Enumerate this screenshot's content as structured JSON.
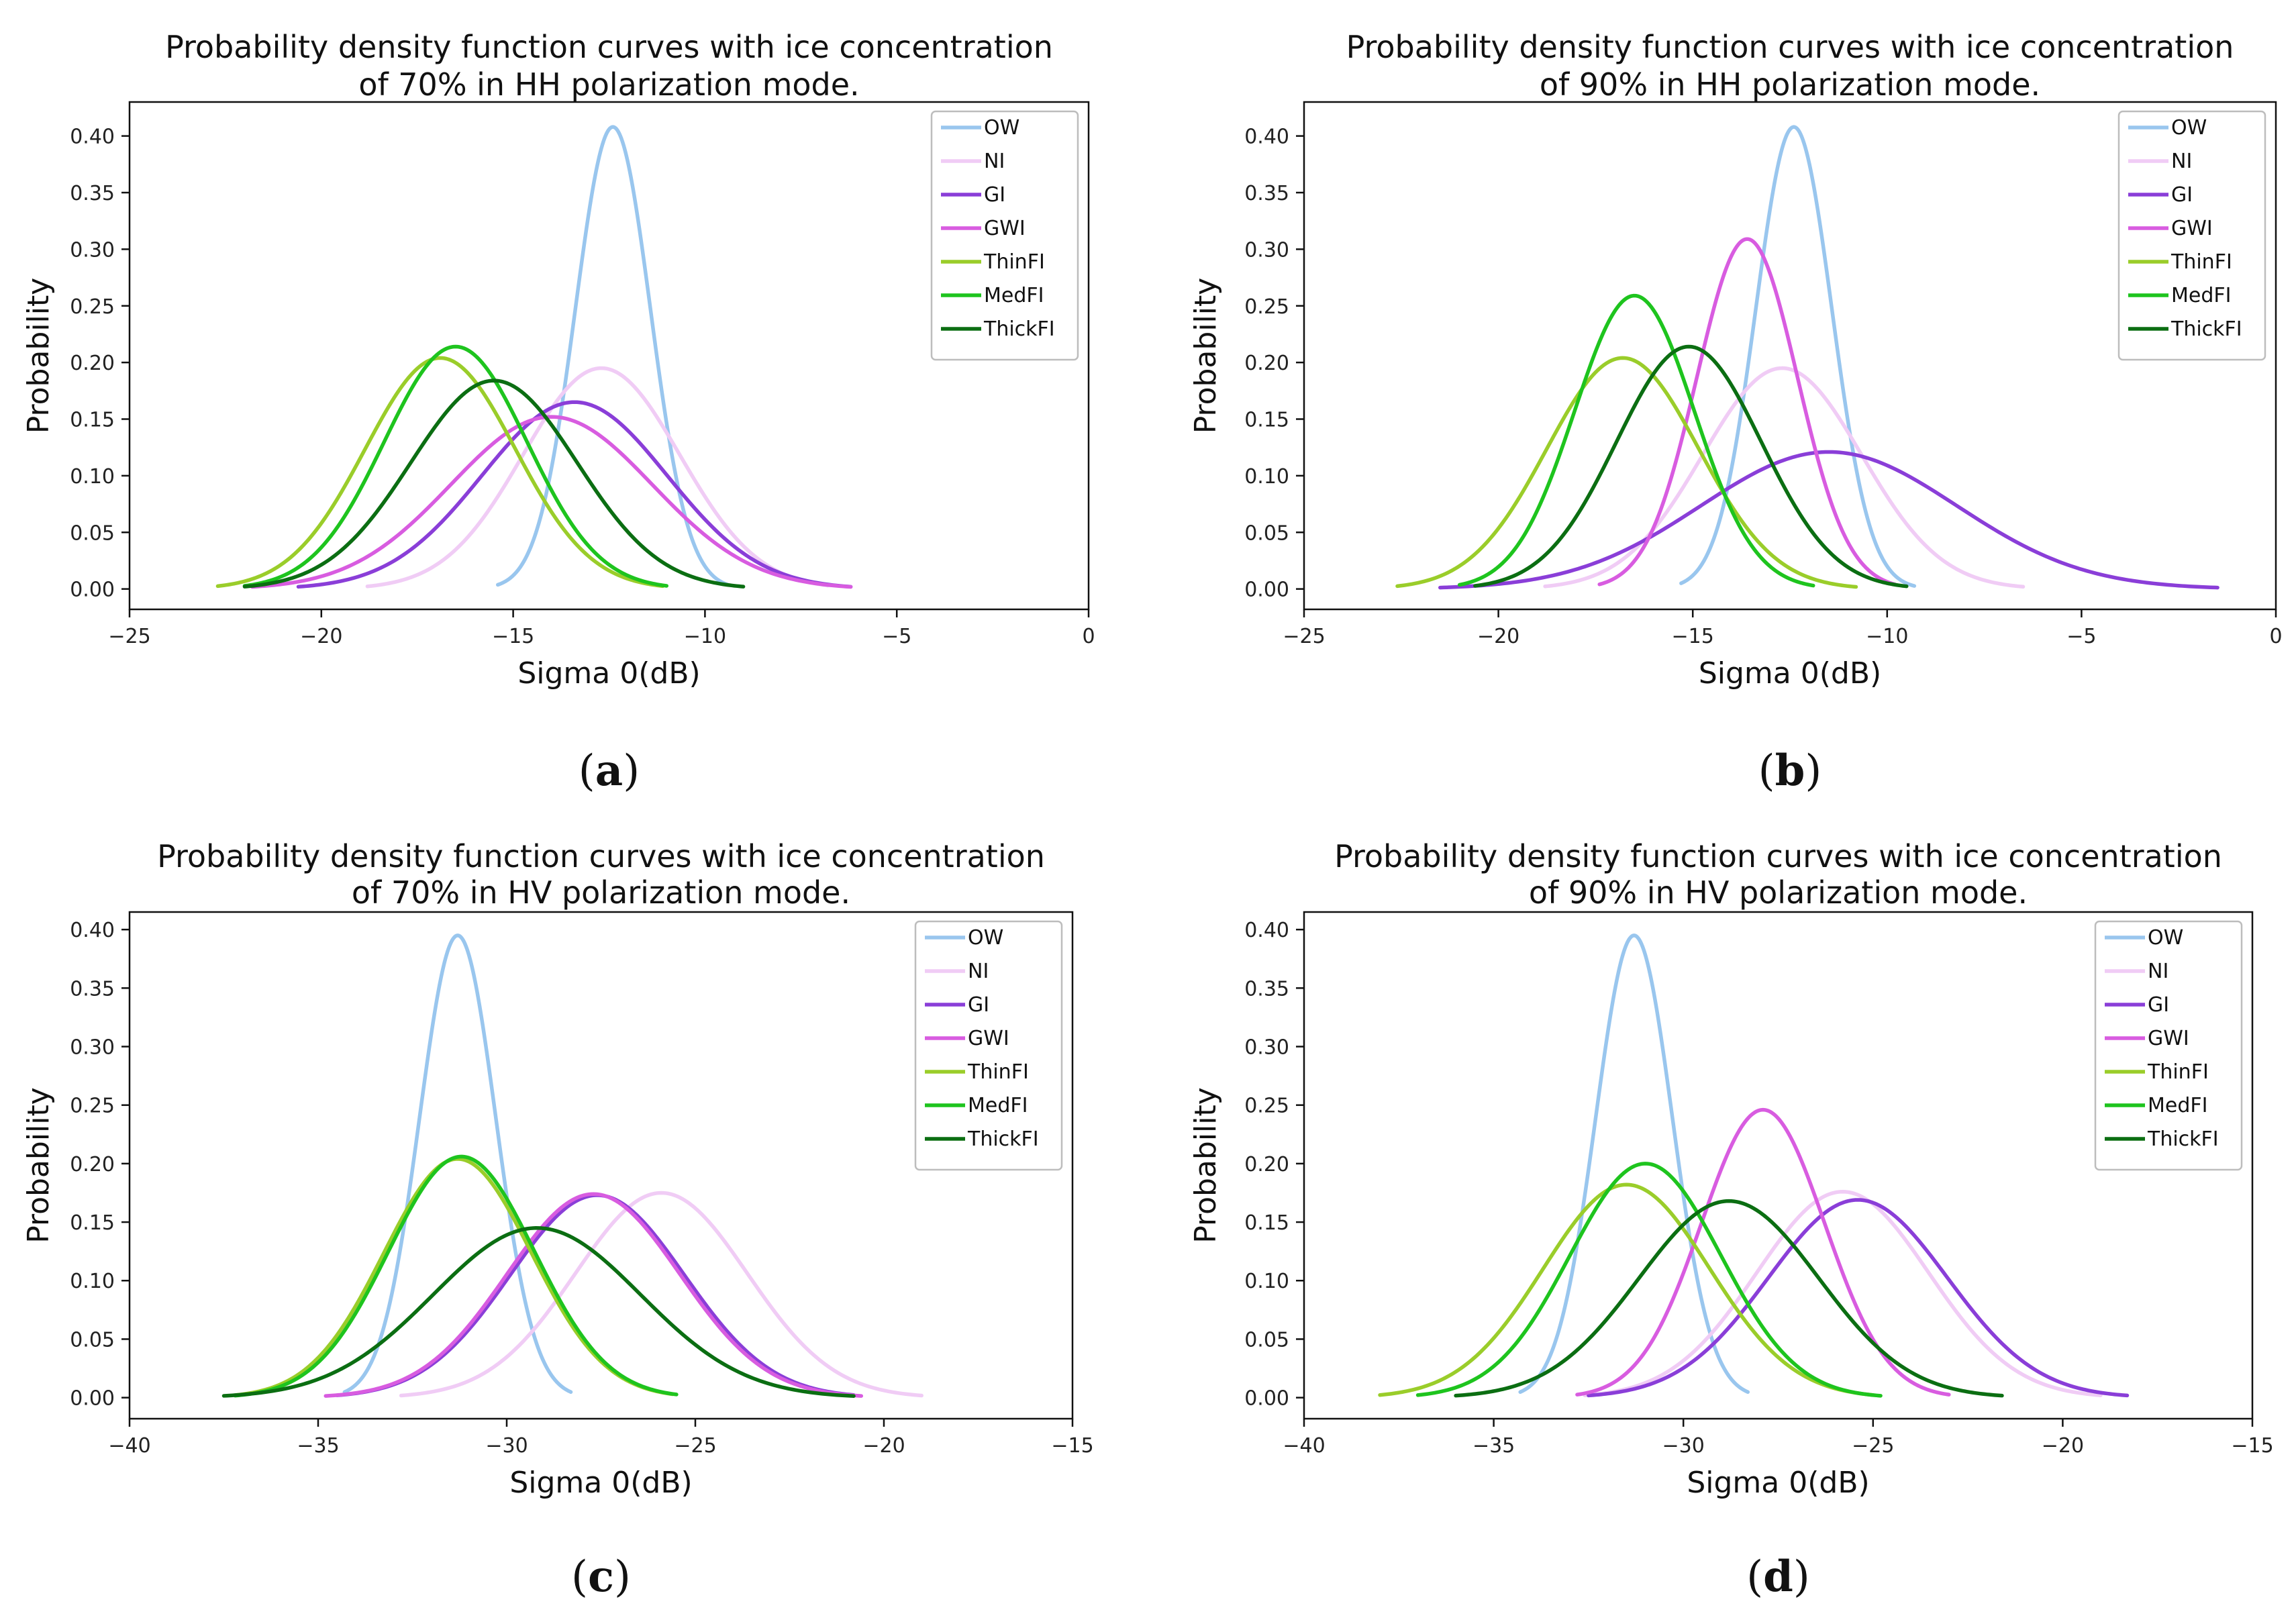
{
  "chart_data": [
    {
      "type": "line",
      "panel_label": "a",
      "title": "Probability density function curves with ice concentration of 70% in HH polarization mode.",
      "title_lines": [
        "Probability density function curves with ice concentration",
        "of 70% in HH polarization mode."
      ],
      "xlabel": "Sigma 0(dB)",
      "ylabel": "Probability",
      "xlim": [
        -25,
        0
      ],
      "ylim": [
        -0.018,
        0.43
      ],
      "xticks": [
        -25,
        -20,
        -15,
        -10,
        -5,
        0
      ],
      "yticks": [
        0.0,
        0.05,
        0.1,
        0.15,
        0.2,
        0.25,
        0.3,
        0.35,
        0.4
      ],
      "ytick_labels": [
        "0.00",
        "0.05",
        "0.10",
        "0.15",
        "0.20",
        "0.25",
        "0.30",
        "0.35",
        "0.40"
      ],
      "legend": "top-right",
      "grid": false,
      "series": [
        {
          "name": "OW",
          "color": "#99c6ee",
          "mean": -12.4,
          "peak": 0.408,
          "xrange": [
            -15.4,
            -9.4
          ]
        },
        {
          "name": "NI",
          "color": "#f0ccf5",
          "mean": -12.7,
          "peak": 0.195,
          "xrange": [
            -18.8,
            -6.8
          ]
        },
        {
          "name": "GI",
          "color": "#8a3ed8",
          "mean": -13.4,
          "peak": 0.165,
          "xrange": [
            -20.6,
            -6.2
          ]
        },
        {
          "name": "GWI",
          "color": "#d85ce0",
          "mean": -14.0,
          "peak": 0.152,
          "xrange": [
            -21.8,
            -6.2
          ]
        },
        {
          "name": "ThinFI",
          "color": "#9acd2a",
          "mean": -16.9,
          "peak": 0.204,
          "xrange": [
            -22.7,
            -11.1
          ]
        },
        {
          "name": "MedFI",
          "color": "#1ec41e",
          "mean": -16.5,
          "peak": 0.214,
          "xrange": [
            -22.0,
            -11.0
          ]
        },
        {
          "name": "ThickFI",
          "color": "#0b6e12",
          "mean": -15.5,
          "peak": 0.184,
          "xrange": [
            -22.0,
            -9.0
          ]
        }
      ]
    },
    {
      "type": "line",
      "panel_label": "b",
      "title": "Probability density function curves with ice concentration of 90% in HH polarization mode.",
      "title_lines": [
        "Probability density function curves with ice concentration",
        "of 90% in HH polarization mode."
      ],
      "xlabel": "Sigma 0(dB)",
      "ylabel": "Probability",
      "xlim": [
        -25,
        0
      ],
      "ylim": [
        -0.018,
        0.43
      ],
      "xticks": [
        -25,
        -20,
        -15,
        -10,
        -5,
        0
      ],
      "yticks": [
        0.0,
        0.05,
        0.1,
        0.15,
        0.2,
        0.25,
        0.3,
        0.35,
        0.4
      ],
      "ytick_labels": [
        "0.00",
        "0.05",
        "0.10",
        "0.15",
        "0.20",
        "0.25",
        "0.30",
        "0.35",
        "0.40"
      ],
      "legend": "top-right",
      "grid": false,
      "series": [
        {
          "name": "OW",
          "color": "#99c6ee",
          "mean": -12.4,
          "peak": 0.408,
          "xrange": [
            -15.3,
            -9.3
          ]
        },
        {
          "name": "NI",
          "color": "#f0ccf5",
          "mean": -12.7,
          "peak": 0.195,
          "xrange": [
            -18.8,
            -6.5
          ]
        },
        {
          "name": "GI",
          "color": "#8a3ed8",
          "mean": -11.5,
          "peak": 0.121,
          "xrange": [
            -21.5,
            -1.5
          ]
        },
        {
          "name": "GWI",
          "color": "#d85ce0",
          "mean": -13.6,
          "peak": 0.309,
          "xrange": [
            -17.4,
            -9.8
          ]
        },
        {
          "name": "ThinFI",
          "color": "#9acd2a",
          "mean": -16.8,
          "peak": 0.204,
          "xrange": [
            -22.6,
            -10.8
          ]
        },
        {
          "name": "MedFI",
          "color": "#1ec41e",
          "mean": -16.5,
          "peak": 0.259,
          "xrange": [
            -21.0,
            -11.9
          ]
        },
        {
          "name": "ThickFI",
          "color": "#0b6e12",
          "mean": -15.1,
          "peak": 0.214,
          "xrange": [
            -20.6,
            -9.5
          ]
        }
      ]
    },
    {
      "type": "line",
      "panel_label": "c",
      "title": "Probability density function curves with ice concentration of 70% in HV polarization mode.",
      "title_lines": [
        "Probability density function curves with ice concentration",
        "of 70% in HV polarization mode."
      ],
      "xlabel": "Sigma 0(dB)",
      "ylabel": "Probability",
      "xlim": [
        -40,
        -15
      ],
      "ylim": [
        -0.018,
        0.415
      ],
      "xticks": [
        -40,
        -35,
        -30,
        -25,
        -20,
        -15
      ],
      "yticks": [
        0.0,
        0.05,
        0.1,
        0.15,
        0.2,
        0.25,
        0.3,
        0.35,
        0.4
      ],
      "ytick_labels": [
        "0.00",
        "0.05",
        "0.10",
        "0.15",
        "0.20",
        "0.25",
        "0.30",
        "0.35",
        "0.40"
      ],
      "legend": "top-right",
      "grid": false,
      "series": [
        {
          "name": "OW",
          "color": "#99c6ee",
          "mean": -31.3,
          "peak": 0.395,
          "xrange": [
            -34.3,
            -28.3
          ]
        },
        {
          "name": "NI",
          "color": "#f0ccf5",
          "mean": -25.9,
          "peak": 0.175,
          "xrange": [
            -32.8,
            -19.0
          ]
        },
        {
          "name": "GI",
          "color": "#8a3ed8",
          "mean": -27.6,
          "peak": 0.173,
          "xrange": [
            -34.5,
            -20.8
          ]
        },
        {
          "name": "GWI",
          "color": "#d85ce0",
          "mean": -27.7,
          "peak": 0.174,
          "xrange": [
            -34.8,
            -20.6
          ]
        },
        {
          "name": "ThinFI",
          "color": "#9acd2a",
          "mean": -31.3,
          "peak": 0.204,
          "xrange": [
            -37.2,
            -25.6
          ]
        },
        {
          "name": "MedFI",
          "color": "#1ec41e",
          "mean": -31.2,
          "peak": 0.206,
          "xrange": [
            -37.2,
            -25.5
          ]
        },
        {
          "name": "ThickFI",
          "color": "#0b6e12",
          "mean": -29.2,
          "peak": 0.145,
          "xrange": [
            -37.5,
            -20.8
          ]
        }
      ]
    },
    {
      "type": "line",
      "panel_label": "d",
      "title": "Probability density function curves with ice concentration of 90% in HV polarization mode.",
      "title_lines": [
        "Probability density function curves with ice concentration",
        "of 90% in HV polarization mode."
      ],
      "xlabel": "Sigma 0(dB)",
      "ylabel": "Probability",
      "xlim": [
        -40,
        -15
      ],
      "ylim": [
        -0.018,
        0.415
      ],
      "xticks": [
        -40,
        -35,
        -30,
        -25,
        -20,
        -15
      ],
      "yticks": [
        0.0,
        0.05,
        0.1,
        0.15,
        0.2,
        0.25,
        0.3,
        0.35,
        0.4
      ],
      "ytick_labels": [
        "0.00",
        "0.05",
        "0.10",
        "0.15",
        "0.20",
        "0.25",
        "0.30",
        "0.35",
        "0.40"
      ],
      "legend": "top-right",
      "grid": false,
      "series": [
        {
          "name": "OW",
          "color": "#99c6ee",
          "mean": -31.3,
          "peak": 0.395,
          "xrange": [
            -34.3,
            -28.3
          ]
        },
        {
          "name": "NI",
          "color": "#f0ccf5",
          "mean": -25.8,
          "peak": 0.176,
          "xrange": [
            -32.6,
            -19.0
          ]
        },
        {
          "name": "GI",
          "color": "#8a3ed8",
          "mean": -25.4,
          "peak": 0.169,
          "xrange": [
            -32.5,
            -18.3
          ]
        },
        {
          "name": "GWI",
          "color": "#d85ce0",
          "mean": -27.9,
          "peak": 0.246,
          "xrange": [
            -32.8,
            -23.0
          ]
        },
        {
          "name": "ThinFI",
          "color": "#9acd2a",
          "mean": -31.5,
          "peak": 0.182,
          "xrange": [
            -38.0,
            -25.0
          ]
        },
        {
          "name": "MedFI",
          "color": "#1ec41e",
          "mean": -31.0,
          "peak": 0.2,
          "xrange": [
            -37.0,
            -24.8
          ]
        },
        {
          "name": "ThickFI",
          "color": "#0b6e12",
          "mean": -28.8,
          "peak": 0.168,
          "xrange": [
            -36.0,
            -21.6
          ]
        }
      ]
    }
  ]
}
